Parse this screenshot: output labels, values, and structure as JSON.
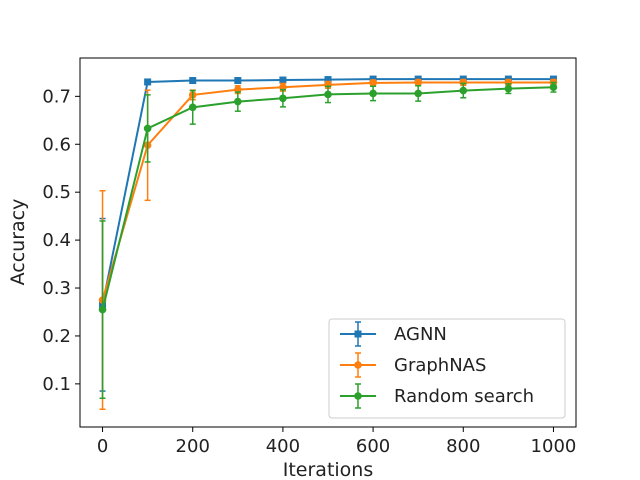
{
  "chart_data": {
    "type": "line",
    "title": "",
    "xlabel": "Iterations",
    "ylabel": "Accuracy",
    "xlim": [
      -50,
      1050
    ],
    "ylim": [
      0.01,
      0.78
    ],
    "xticks": [
      0,
      200,
      400,
      600,
      800,
      1000
    ],
    "yticks": [
      0.1,
      0.2,
      0.3,
      0.4,
      0.5,
      0.6,
      0.7
    ],
    "grid": false,
    "legend_position": "lower-right",
    "x": [
      0,
      100,
      200,
      300,
      400,
      500,
      600,
      700,
      800,
      900,
      1000
    ],
    "series": [
      {
        "name": "AGNN",
        "color": "#1f77b4",
        "marker": "square",
        "values": [
          0.265,
          0.73,
          0.733,
          0.733,
          0.734,
          0.735,
          0.736,
          0.736,
          0.736,
          0.736,
          0.736
        ],
        "errors": [
          0.18,
          0.003,
          0.003,
          0.003,
          0.003,
          0.003,
          0.004,
          0.004,
          0.004,
          0.004,
          0.004
        ]
      },
      {
        "name": "GraphNAS",
        "color": "#ff7f0e",
        "marker": "circle",
        "values": [
          0.275,
          0.598,
          0.703,
          0.714,
          0.719,
          0.724,
          0.728,
          0.729,
          0.729,
          0.729,
          0.729
        ],
        "errors": [
          0.228,
          0.115,
          0.01,
          0.008,
          0.008,
          0.007,
          0.006,
          0.006,
          0.006,
          0.006,
          0.006
        ]
      },
      {
        "name": "Random search",
        "color": "#2ca02c",
        "marker": "circle",
        "values": [
          0.255,
          0.633,
          0.677,
          0.689,
          0.696,
          0.704,
          0.706,
          0.706,
          0.712,
          0.716,
          0.719
        ],
        "errors": [
          0.185,
          0.07,
          0.035,
          0.02,
          0.018,
          0.017,
          0.015,
          0.016,
          0.015,
          0.01,
          0.01
        ]
      }
    ]
  }
}
